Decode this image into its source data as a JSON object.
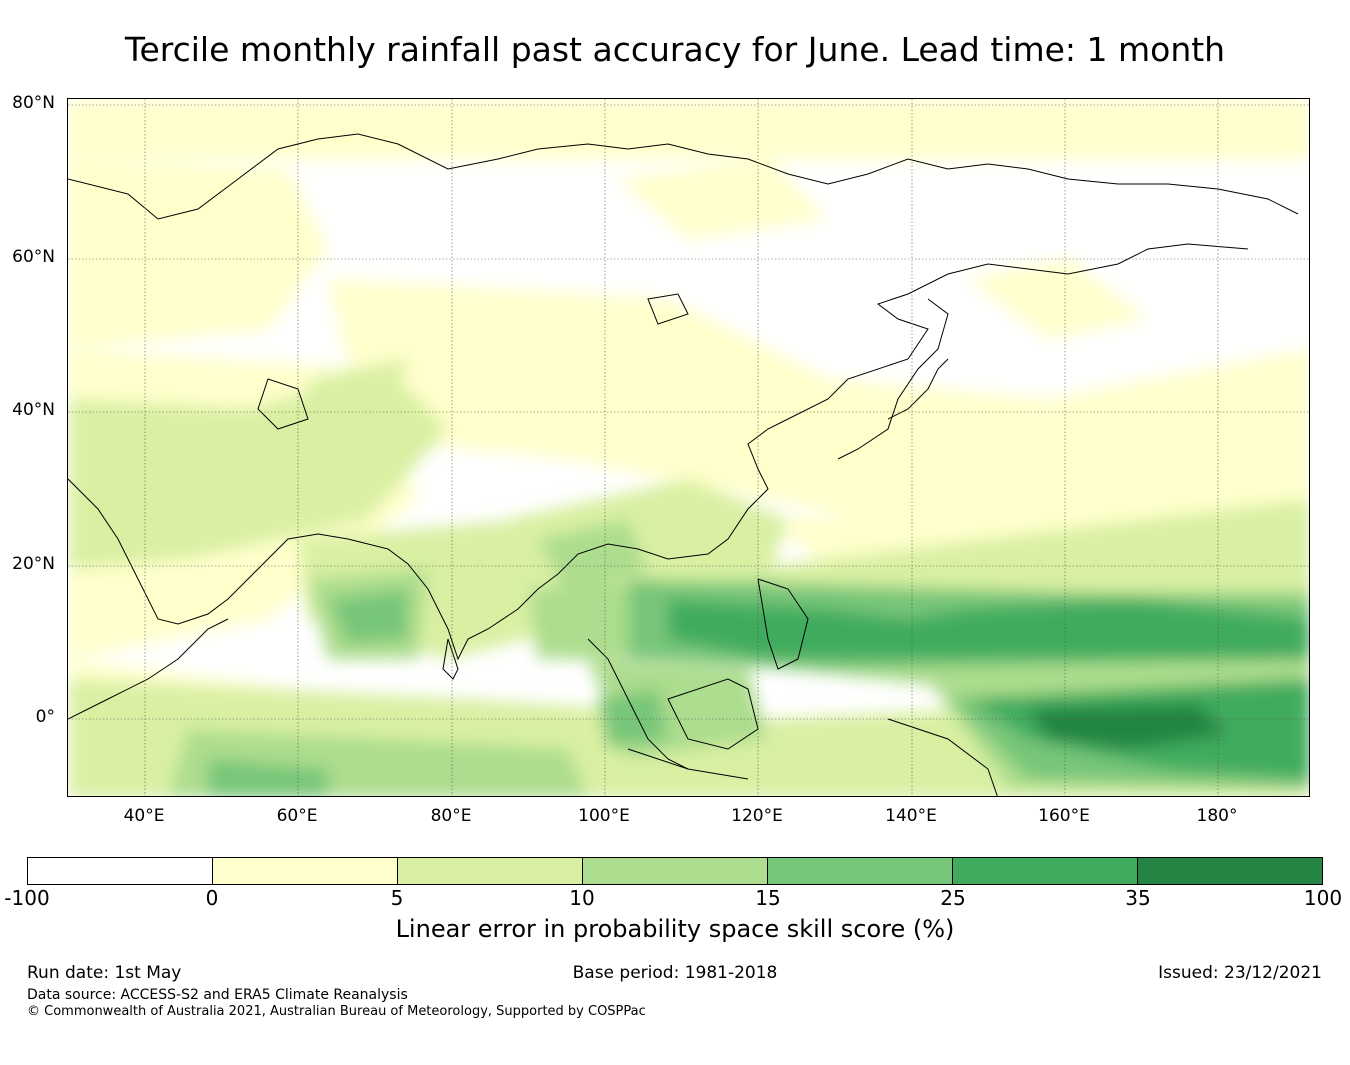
{
  "title": "Tercile monthly rainfall past accuracy for June. Lead time: 1 month",
  "map": {
    "lat_ticks": [
      "80°N",
      "60°N",
      "40°N",
      "20°N",
      "0°"
    ],
    "lon_ticks": [
      "40°E",
      "60°E",
      "80°E",
      "100°E",
      "120°E",
      "140°E",
      "160°E",
      "180°"
    ],
    "lon_range": [
      30,
      192
    ],
    "lat_range": [
      -10,
      81
    ]
  },
  "colorbar": {
    "tick_labels": [
      "-100",
      "0",
      "5",
      "10",
      "15",
      "25",
      "35",
      "100"
    ],
    "colors": [
      "#ffffff",
      "#ffffcc",
      "#d9f0a3",
      "#addd8e",
      "#78c679",
      "#41ab5d",
      "#238443"
    ],
    "label": "Linear error in probability space skill score (%)"
  },
  "footer": {
    "run_date": "Run date: 1st May",
    "base_period": "Base period: 1981-2018",
    "issued": "Issued: 23/12/2021",
    "data_source": "Data source: ACCESS-S2 and ERA5 Climate Reanalysis",
    "copyright": "© Commonwealth of Australia 2021, Australian Bureau of Meteorology, Supported by COSPPac"
  }
}
